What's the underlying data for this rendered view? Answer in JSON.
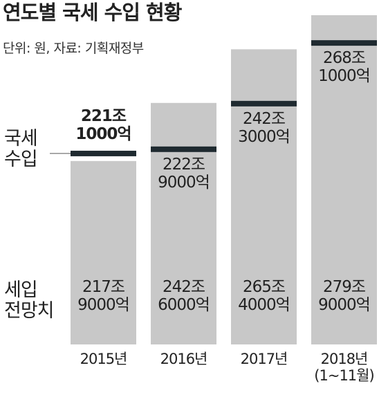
{
  "chart_data": {
    "type": "bar",
    "title": "연도별 국세 수입 현황",
    "subtitle": "단위: 원, 자료: 기획재정부",
    "categories": [
      "2015년",
      "2016년",
      "2017년",
      "2018년\n(1~11월)"
    ],
    "series": [
      {
        "name": "국세\n수입",
        "type": "marker",
        "color": "#1f2a30",
        "values": [
          221.1,
          222.9,
          242.3,
          268.1
        ],
        "value_labels": [
          "221조\n1000억",
          "222조\n9000억",
          "242조\n3000억",
          "268조\n1000억"
        ]
      },
      {
        "name": "세입\n전망치",
        "type": "bar",
        "color": "#c8c8c8",
        "values": [
          217.9,
          242.6,
          265.4,
          279.9
        ],
        "value_labels": [
          "217조\n9000억",
          "242조\n6000억",
          "265조\n4000억",
          "279조\n9000억"
        ]
      }
    ]
  }
}
